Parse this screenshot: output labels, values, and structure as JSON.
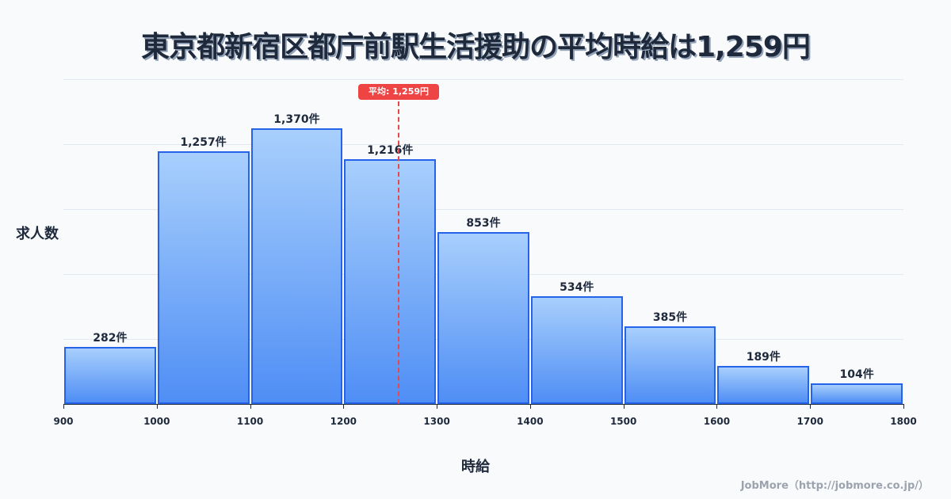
{
  "title": "東京都新宿区都庁前駅生活援助の平均時給は1,259円",
  "ylabel": "求人数",
  "xlabel": "時給",
  "credit": "JobMore（http://jobmore.co.jp/）",
  "mean_label": "平均: 1,259円",
  "bars": [
    {
      "label": "282件"
    },
    {
      "label": "1,257件"
    },
    {
      "label": "1,370件"
    },
    {
      "label": "1,216件"
    },
    {
      "label": "853件"
    },
    {
      "label": "534件"
    },
    {
      "label": "385件"
    },
    {
      "label": "189件"
    },
    {
      "label": "104件"
    }
  ],
  "ticks": [
    "900",
    "1000",
    "1100",
    "1200",
    "1300",
    "1400",
    "1500",
    "1600",
    "1700",
    "1800"
  ],
  "colors": {
    "bar_border": "#2563eb",
    "bar_top": "#a8cffc",
    "bar_bottom": "#4f8ef5",
    "mean_line": "#ef4444",
    "title": "#1e293b",
    "background": "#f8fafc"
  },
  "chart_data": {
    "type": "bar",
    "title": "東京都新宿区都庁前駅生活援助の平均時給は1,259円",
    "xlabel": "時給",
    "ylabel": "求人数",
    "categories": [
      "900-1000",
      "1000-1100",
      "1100-1200",
      "1200-1300",
      "1300-1400",
      "1400-1500",
      "1500-1600",
      "1600-1700",
      "1700-1800"
    ],
    "bin_edges": [
      900,
      1000,
      1100,
      1200,
      1300,
      1400,
      1500,
      1600,
      1700,
      1800
    ],
    "values": [
      282,
      1257,
      1370,
      1216,
      853,
      534,
      385,
      189,
      104
    ],
    "value_suffix": "件",
    "xlim": [
      900,
      1800
    ],
    "ylim": [
      0,
      1614
    ],
    "grid": true,
    "annotations": [
      {
        "type": "vline",
        "x": 1259,
        "label": "平均: 1,259円",
        "style": "dashed",
        "color": "#ef4444"
      }
    ],
    "legend": null
  }
}
